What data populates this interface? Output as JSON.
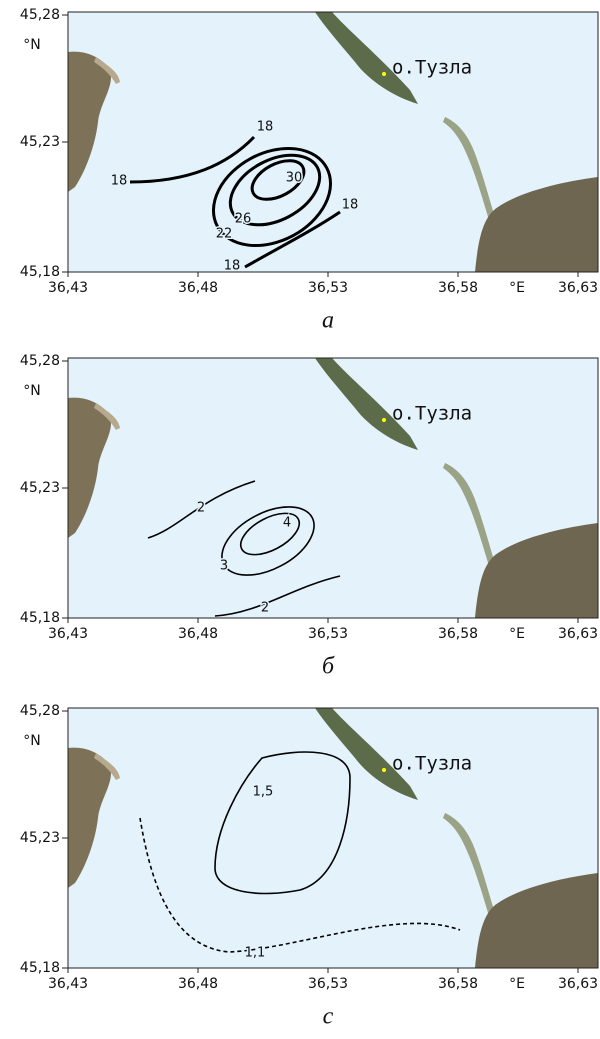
{
  "panels": [
    {
      "lat_unit": "°N",
      "lon_unit": "°E",
      "place": "о.Тузла",
      "xticks": [
        "36,43",
        "36,48",
        "36,53",
        "36,58",
        "36,63"
      ],
      "yticks": [
        "45,28",
        "45,23",
        "45,18"
      ],
      "contours": [
        "18",
        "18",
        "30",
        "26",
        "22",
        "18",
        "18"
      ],
      "caption": "а"
    },
    {
      "lat_unit": "°N",
      "lon_unit": "°E",
      "place": "о.Тузла",
      "xticks": [
        "36,43",
        "36,48",
        "36,53",
        "36,58",
        "36,63"
      ],
      "yticks": [
        "45,28",
        "45,23",
        "45,18"
      ],
      "contours": [
        "2",
        "4",
        "3",
        "2"
      ],
      "caption": "б"
    },
    {
      "lat_unit": "°N",
      "lon_unit": "°E",
      "place": "о.Тузла",
      "xticks": [
        "36,43",
        "36,48",
        "36,53",
        "36,58",
        "36,63"
      ],
      "yticks": [
        "45,28",
        "45,23",
        "45,18"
      ],
      "contours": [
        "1,5",
        "1,1"
      ],
      "caption": "c"
    }
  ]
}
